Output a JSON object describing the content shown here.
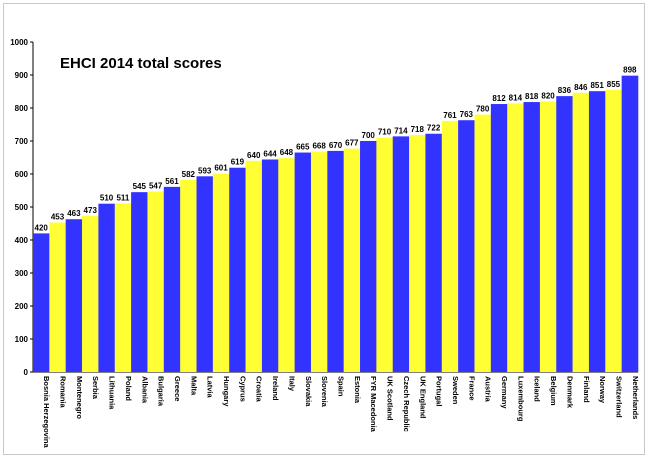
{
  "chart_data": {
    "type": "bar",
    "title": "EHCI 2014 total scores",
    "xlabel": "",
    "ylabel": "",
    "ylim": [
      0,
      1000
    ],
    "yticks": [
      0,
      100,
      200,
      300,
      400,
      500,
      600,
      700,
      800,
      900,
      1000
    ],
    "grid": false,
    "legend": "none",
    "colors": {
      "odd": "#3333ff",
      "even": "#ffff33"
    },
    "categories": [
      "Bosnia Herzegovina",
      "Romania",
      "Montenegro",
      "Serbia",
      "Lithuania",
      "Poland",
      "Albania",
      "Bulgaria",
      "Greece",
      "Malta",
      "Latvia",
      "Hungary",
      "Cyprus",
      "Croatia",
      "Ireland",
      "Italy",
      "Slovakia",
      "Slovenia",
      "Spain",
      "Estonia",
      "FYR Macedonia",
      "UK Scotland",
      "Czech Republic",
      "UK England",
      "Portugal",
      "Sweden",
      "France",
      "Austria",
      "Germany",
      "Luxembourg",
      "Iceland",
      "Belgium",
      "Denmark",
      "Finland",
      "Norway",
      "Switzerland",
      "Netherlands"
    ],
    "values": [
      420,
      453,
      463,
      473,
      510,
      511,
      545,
      547,
      561,
      582,
      593,
      601,
      619,
      640,
      644,
      648,
      665,
      668,
      670,
      677,
      700,
      710,
      714,
      718,
      722,
      761,
      763,
      780,
      812,
      814,
      818,
      820,
      836,
      846,
      851,
      855,
      898
    ]
  }
}
